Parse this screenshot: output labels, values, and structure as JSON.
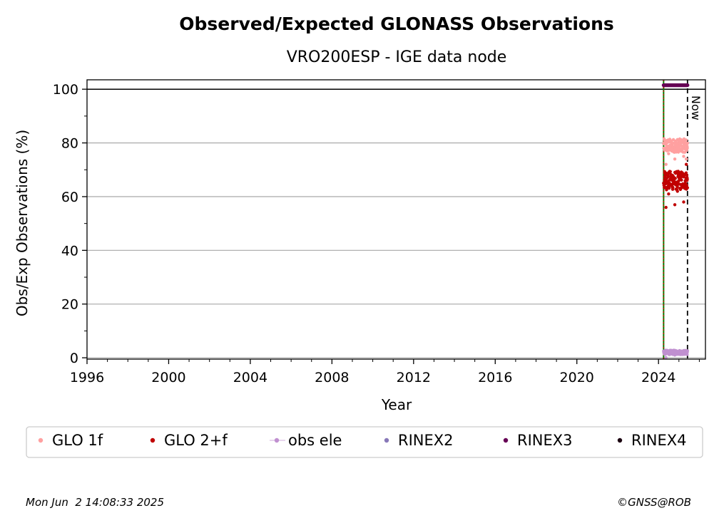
{
  "chart_data": {
    "type": "scatter",
    "title": "Observed/Expected GLONASS Observations",
    "subtitle": "VRO200ESP - IGE data node",
    "xlabel": "Year",
    "ylabel": "Obs/Exp Observations (%)",
    "xlim": [
      1996,
      2026.3
    ],
    "ylim": [
      -0.5,
      103.5
    ],
    "xticks": [
      1996,
      2000,
      2004,
      2008,
      2012,
      2016,
      2020,
      2024
    ],
    "yticks": [
      0,
      20,
      40,
      60,
      80,
      100
    ],
    "grid": "horizontal",
    "reference_line_y": 100,
    "start_line_x": 2024.25,
    "now_line": {
      "x": 2025.42,
      "label": "Now"
    },
    "legend_position": "bottom",
    "series": [
      {
        "name": "GLO 1f",
        "color": "#ffa0a0",
        "marker": "dot",
        "x_range": [
          2024.25,
          2025.42
        ],
        "y_center": 79,
        "y_spread": 2.5,
        "outliers": [
          72,
          74,
          75,
          76,
          77,
          74
        ]
      },
      {
        "name": "GLO 2+f",
        "color": "#c00000",
        "marker": "dot",
        "x_range": [
          2024.25,
          2025.42
        ],
        "y_center": 66,
        "y_spread": 3.5,
        "outliers": [
          56,
          57,
          58,
          61,
          62,
          72
        ]
      },
      {
        "name": "obs ele",
        "color": "#c090d0",
        "marker": "dot-line",
        "x_range": [
          2024.25,
          2025.42
        ],
        "y_center": 2,
        "y_spread": 0.8,
        "outliers": [
          0,
          1
        ]
      },
      {
        "name": "RINEX2",
        "color": "#8878b8",
        "marker": "dot",
        "x_range": [],
        "y_center": null
      },
      {
        "name": "RINEX3",
        "color": "#660055",
        "marker": "dot",
        "x_range": [
          2024.25,
          2025.42
        ],
        "y_center": 101.5,
        "y_spread": 0
      },
      {
        "name": "RINEX4",
        "color": "#1a0010",
        "marker": "dot",
        "x_range": [],
        "y_center": null
      }
    ]
  },
  "footer": {
    "timestamp": "Mon Jun  2 14:08:33 2025",
    "credit": "©GNSS@ROB"
  }
}
